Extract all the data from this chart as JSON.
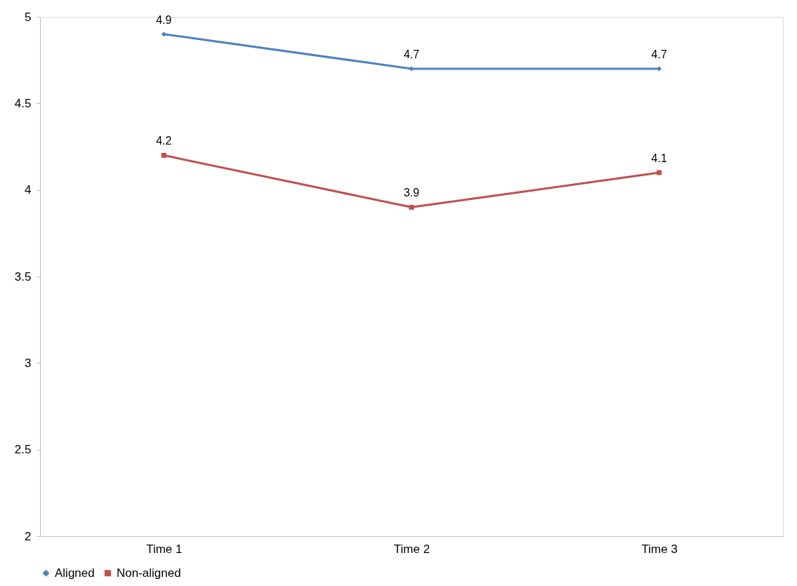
{
  "chart_data": {
    "type": "line",
    "categories": [
      "Time 1",
      "Time 2",
      "Time 3"
    ],
    "series": [
      {
        "name": "Aligned",
        "color": "#4f81bd",
        "marker": "diamond",
        "values": [
          4.9,
          4.7,
          4.7
        ]
      },
      {
        "name": "Non-aligned",
        "color": "#c0504d",
        "marker": "square",
        "values": [
          4.2,
          3.9,
          4.1
        ]
      }
    ],
    "ylim": [
      2,
      5
    ],
    "yticks": [
      2,
      2.5,
      3,
      3.5,
      4,
      4.5,
      5
    ],
    "grid": false,
    "legend": "bottom",
    "data_labels": true,
    "line_style": "solid"
  }
}
